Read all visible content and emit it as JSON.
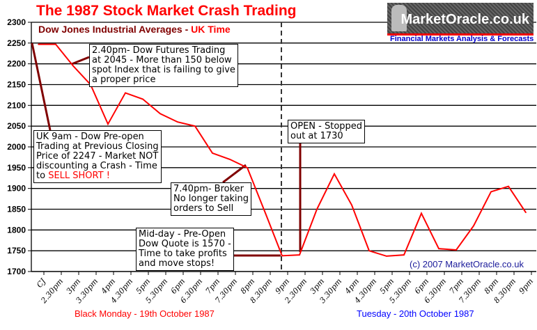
{
  "chart_data": {
    "type": "line",
    "title": "The 1987 Stock Market Crash Trading",
    "subtitle_main": "Dow Jones Industrial Averages - ",
    "subtitle_accent": "UK Time",
    "ylim": [
      1700,
      2300
    ],
    "yticks": [
      1700,
      1750,
      1800,
      1850,
      1900,
      1950,
      2000,
      2050,
      2100,
      2150,
      2200,
      2250,
      2300
    ],
    "categories": [
      "CJ",
      "2.30pm",
      "3pm",
      "3.30pm",
      "4pm",
      "4.30pm",
      "5pm",
      "5.30pm",
      "6pm",
      "6.30pm",
      "7pm",
      "7.30pm",
      "8pm",
      "8.30pm",
      "9pm",
      "2.30pm",
      "3pm",
      "3.30pm",
      "4pm",
      "4.30pm",
      "5pm",
      "5.30pm",
      "6pm",
      "6.30pm",
      "7pm",
      "7.30pm",
      "8pm",
      "8.30pm",
      "9pm"
    ],
    "series": [
      {
        "name": "Dow Jones Industrial Average",
        "color": "#ff0000",
        "values": [
          2247,
          2247,
          2195,
          2150,
          2055,
          2130,
          2115,
          2080,
          2060,
          2050,
          1985,
          1970,
          1950,
          1845,
          1738,
          1740,
          1850,
          1935,
          1860,
          1750,
          1737,
          1740,
          1840,
          1755,
          1752,
          1810,
          1892,
          1905,
          1842
        ]
      }
    ],
    "grid": true,
    "day_labels": [
      {
        "text": "Black Monday - 19th October 1987",
        "color": "#ff0000"
      },
      {
        "text": "Tuesday - 20th October 1987",
        "color": "#0000ff"
      }
    ],
    "annotations": {
      "futures": [
        "2.40pm- Dow Futures Trading",
        "at 2045 - More than 150 below",
        "spot Index that is failing to give",
        "a proper price"
      ],
      "preopen": [
        "UK 9am - Dow Pre-open",
        "Trading at Previous Closing",
        "Price of 2247 - Market NOT",
        "discounting a Crash - Time",
        "to "
      ],
      "preopen_red": "SELL SHORT !",
      "broker": [
        "7.40pm- Broker",
        "No longer taking",
        "orders to Sell"
      ],
      "midday": [
        "Mid-day - Pre-Open",
        "Dow Quote is 1570 -",
        "Time to take profits",
        "and move stops!"
      ],
      "open": [
        "OPEN - Stopped",
        "out at 1730"
      ]
    }
  },
  "logo": {
    "name": "MarketOracle.co.uk",
    "tagline": "Financial Markets Analysis & Forecasts"
  },
  "copyright": "(c) 2007 MarketOracle.co.uk"
}
